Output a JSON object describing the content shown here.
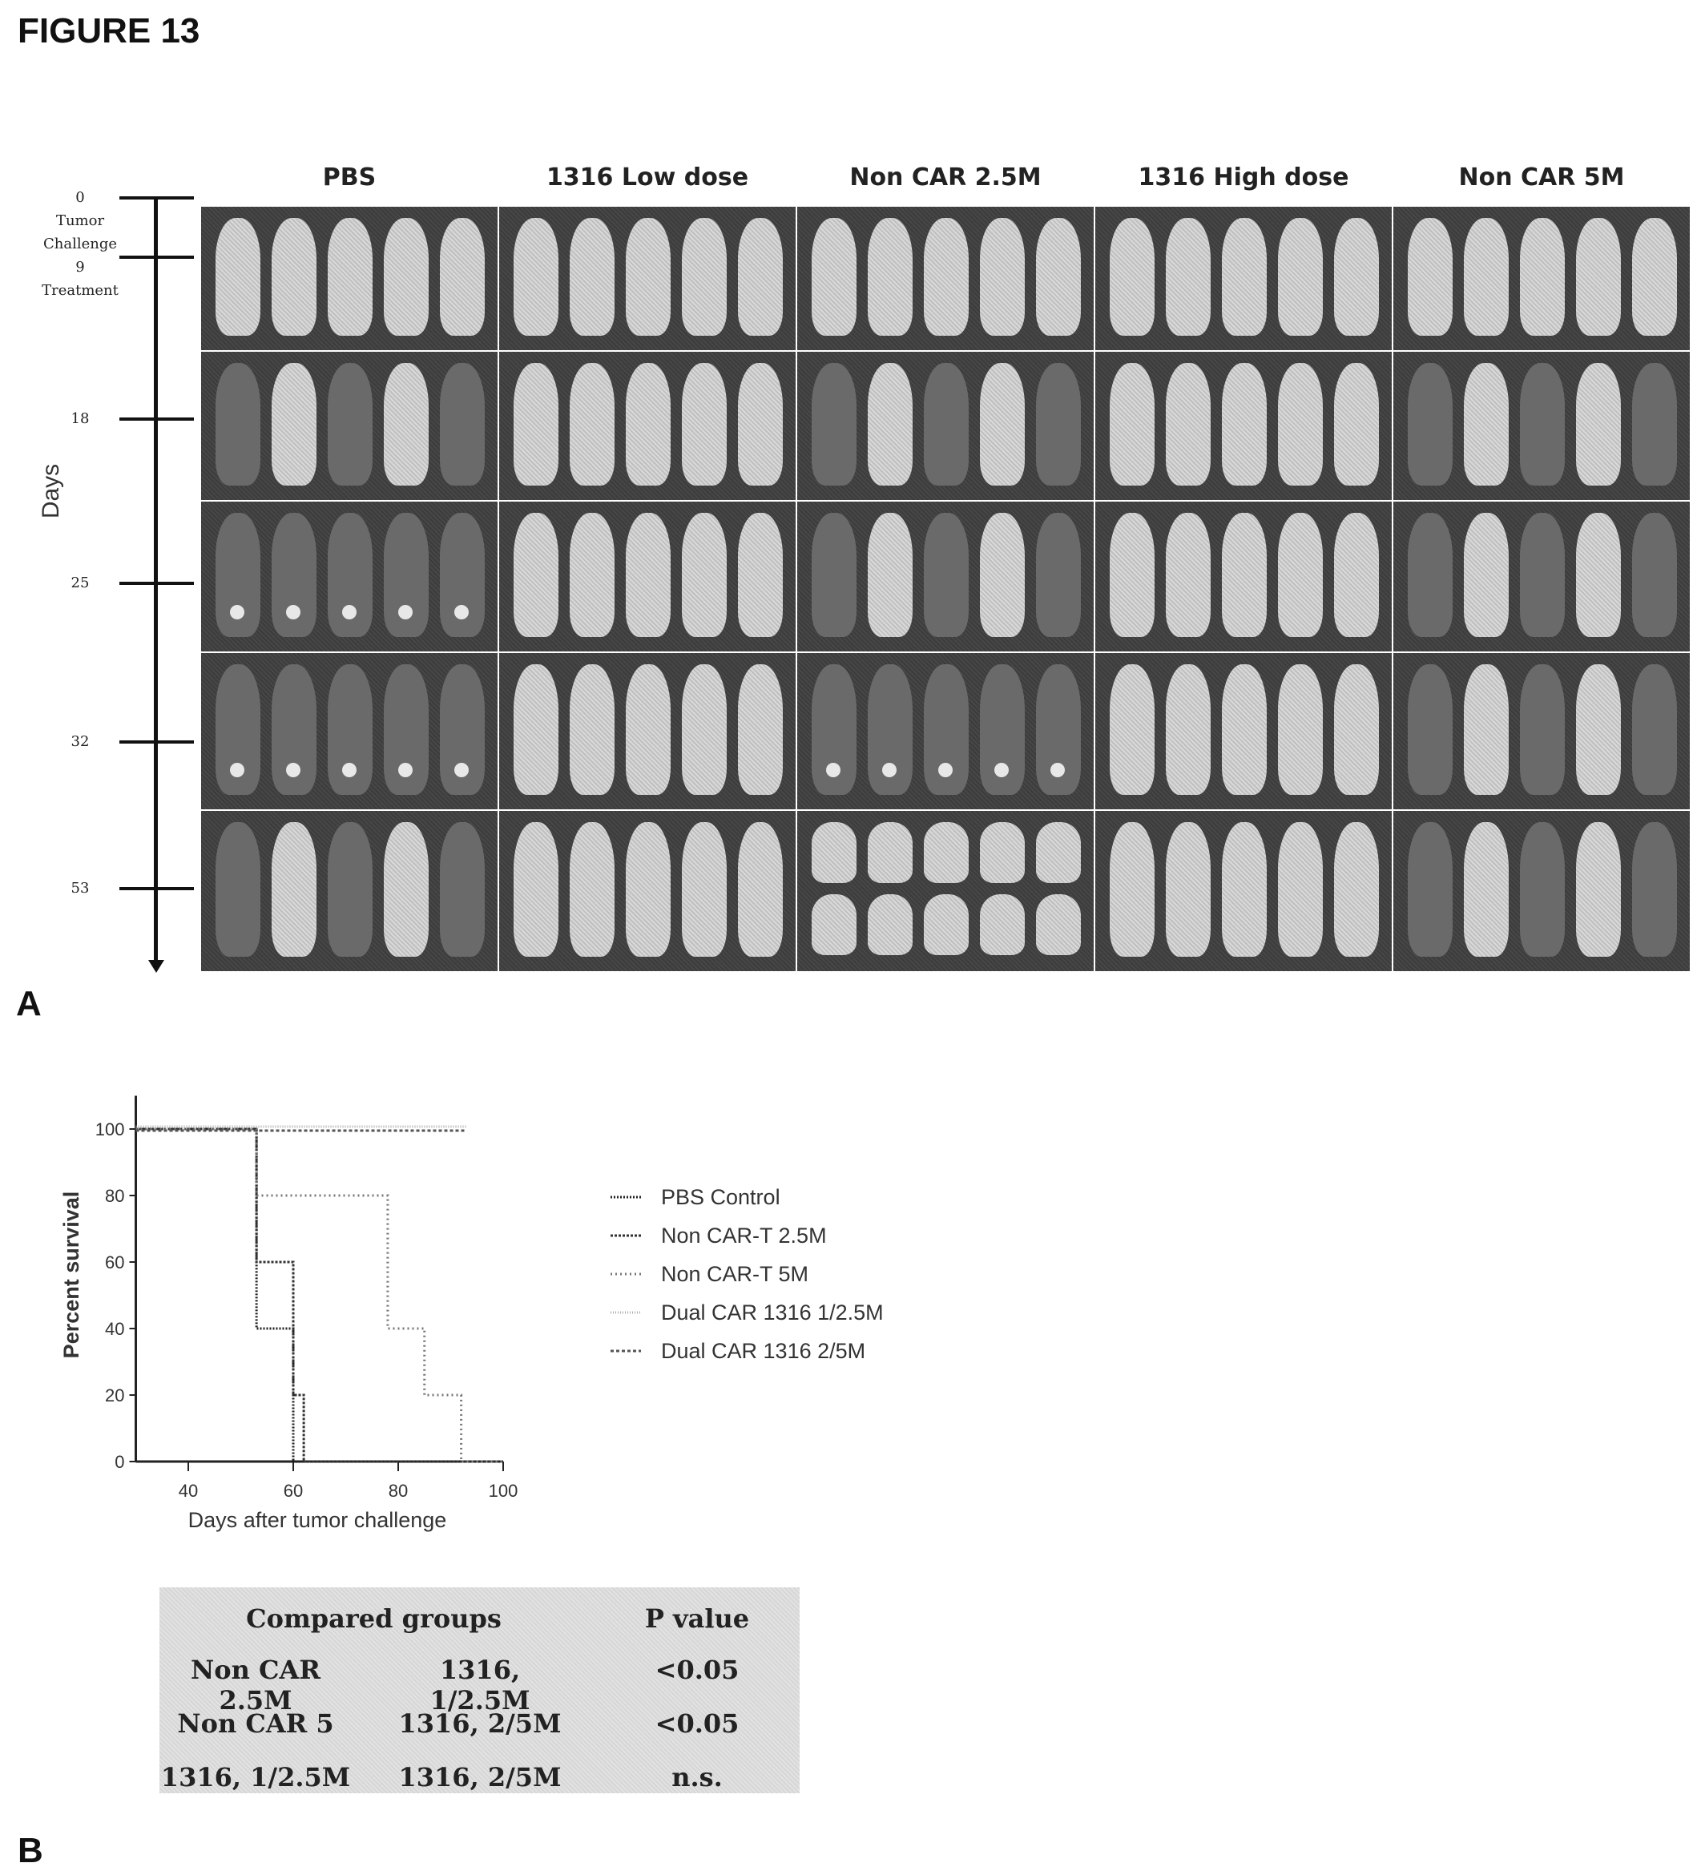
{
  "figure_title": "FIGURE 13",
  "panel_a": {
    "label": "A",
    "columns": [
      "PBS",
      "1316 Low dose",
      "Non CAR 2.5M",
      "1316 High dose",
      "Non CAR 5M"
    ],
    "axis_title": "Days",
    "day_labels": {
      "d0": "0",
      "tumor": "Tumor",
      "challenge": "Challenge",
      "d9": "9",
      "treatment": "Treatment",
      "d18": "18",
      "d25": "25",
      "d32": "32",
      "d53": "53"
    },
    "rows": [
      "0-9",
      "18",
      "25",
      "32",
      "53"
    ]
  },
  "panel_b": {
    "label": "B",
    "table": {
      "header": {
        "groups": "Compared groups",
        "pvalue": "P value"
      },
      "rows": [
        {
          "a": "Non CAR 2.5M",
          "b": "1316, 1/2.5M",
          "p": "<0.05"
        },
        {
          "a": "Non CAR 5",
          "b": "1316, 2/5M",
          "p": "<0.05"
        },
        {
          "a": "1316, 1/2.5M",
          "b": "1316, 2/5M",
          "p": "n.s."
        }
      ]
    }
  },
  "chart_data": {
    "type": "line",
    "title": "",
    "xlabel": "Days after tumor challenge",
    "ylabel": "Percent survival",
    "xlim": [
      30,
      100
    ],
    "ylim": [
      0,
      110
    ],
    "xticks": [
      "40",
      "60",
      "80",
      "100"
    ],
    "yticks": [
      "0",
      "20",
      "40",
      "60",
      "80",
      "100"
    ],
    "legend_position": "right",
    "series": [
      {
        "name": "PBS Control",
        "steps": [
          [
            30,
            100
          ],
          [
            53,
            100
          ],
          [
            53,
            40
          ],
          [
            60,
            40
          ],
          [
            60,
            0
          ],
          [
            100,
            0
          ]
        ],
        "color": "#222222"
      },
      {
        "name": "Non CAR-T 2.5M",
        "steps": [
          [
            30,
            100
          ],
          [
            53,
            100
          ],
          [
            53,
            60
          ],
          [
            60,
            60
          ],
          [
            60,
            20
          ],
          [
            62,
            20
          ],
          [
            62,
            0
          ],
          [
            100,
            0
          ]
        ],
        "color": "#333333"
      },
      {
        "name": "Non CAR-T 5M",
        "steps": [
          [
            30,
            100
          ],
          [
            53,
            100
          ],
          [
            53,
            80
          ],
          [
            78,
            80
          ],
          [
            78,
            40
          ],
          [
            85,
            40
          ],
          [
            85,
            20
          ],
          [
            92,
            20
          ],
          [
            92,
            0
          ],
          [
            100,
            0
          ]
        ],
        "color": "#777777"
      },
      {
        "name": "Dual CAR 1316 1/2.5M",
        "steps": [
          [
            30,
            100
          ],
          [
            93,
            100
          ]
        ],
        "color": "#aaaaaa"
      },
      {
        "name": "Dual CAR 1316 2/5M",
        "steps": [
          [
            30,
            100
          ],
          [
            93,
            100
          ]
        ],
        "color": "#555555"
      }
    ]
  }
}
